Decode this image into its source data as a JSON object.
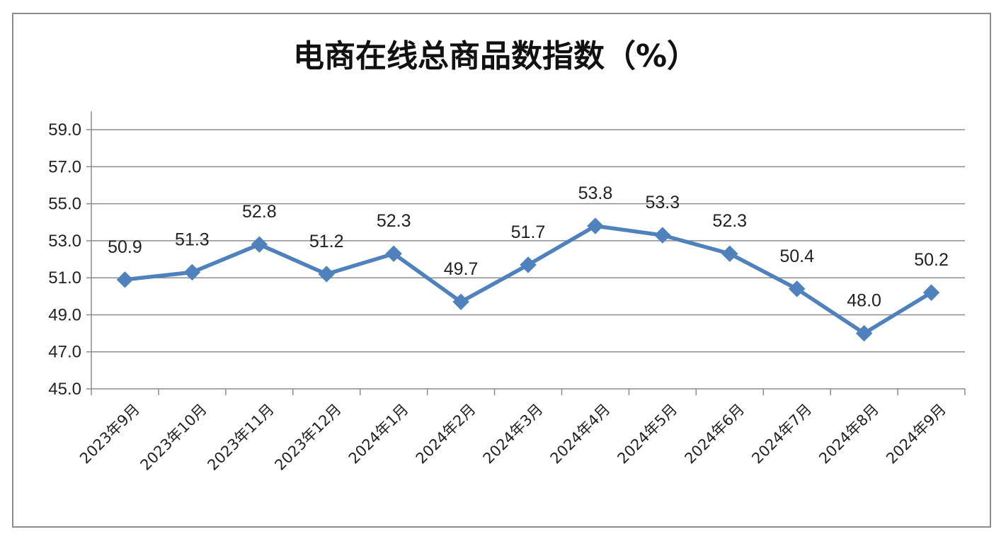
{
  "chart_data": {
    "type": "line",
    "title": "电商在线总商品数指数（%）",
    "xlabel": "",
    "ylabel": "",
    "categories": [
      "2023年9月",
      "2023年10月",
      "2023年11月",
      "2023年12月",
      "2024年1月",
      "2024年2月",
      "2024年3月",
      "2024年4月",
      "2024年5月",
      "2024年6月",
      "2024年7月",
      "2024年8月",
      "2024年9月"
    ],
    "values": [
      50.9,
      51.3,
      52.8,
      51.2,
      52.3,
      49.7,
      51.7,
      53.8,
      53.3,
      52.3,
      50.4,
      48.0,
      50.2
    ],
    "data_labels": [
      "50.9",
      "51.3",
      "52.8",
      "51.2",
      "52.3",
      "49.7",
      "51.7",
      "53.8",
      "53.3",
      "52.3",
      "50.4",
      "48.0",
      "50.2"
    ],
    "yticks": [
      "45.0",
      "47.0",
      "49.0",
      "51.0",
      "53.0",
      "55.0",
      "57.0",
      "59.0"
    ],
    "ylim": [
      45,
      60
    ],
    "grid": true,
    "legend": "none",
    "line_color": "#4f81bd",
    "marker": "diamond"
  }
}
